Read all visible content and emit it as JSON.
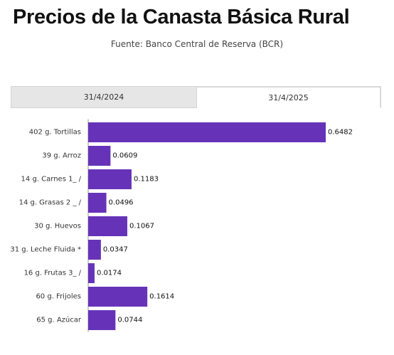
{
  "title": "Precios de la Canasta Básica Rural",
  "subtitle": "Fuente: Banco Central de Reserva (BCR)",
  "tabs": [
    {
      "label": "31/4/2024",
      "active": false
    },
    {
      "label": "31/4/2025",
      "active": true
    }
  ],
  "colors": {
    "bar": "#6633b8",
    "axis": "#999999"
  },
  "chart_data": {
    "type": "bar",
    "orientation": "horizontal",
    "categories": [
      "402 g. Tortillas",
      "39 g. Arroz",
      "14 g. Carnes 1_ /",
      "14 g. Grasas 2 _ /",
      "30 g. Huevos",
      "31 g. Leche Fluida *",
      "16 g. Frutas 3_ /",
      "60 g. Frijoles",
      "65 g. Azúcar"
    ],
    "values": [
      0.6482,
      0.0609,
      0.1183,
      0.0496,
      0.1067,
      0.0347,
      0.0174,
      0.1614,
      0.0744
    ],
    "value_labels": [
      "0.6482",
      "0.0609",
      "0.1183",
      "0.0496",
      "0.1067",
      "0.0347",
      "0.0174",
      "0.1614",
      "0.0744"
    ],
    "title": "Precios de la Canasta Básica Rural",
    "xlabel": "",
    "ylabel": "",
    "xlim": [
      0,
      0.6482
    ],
    "grid": false,
    "legend": "none"
  }
}
